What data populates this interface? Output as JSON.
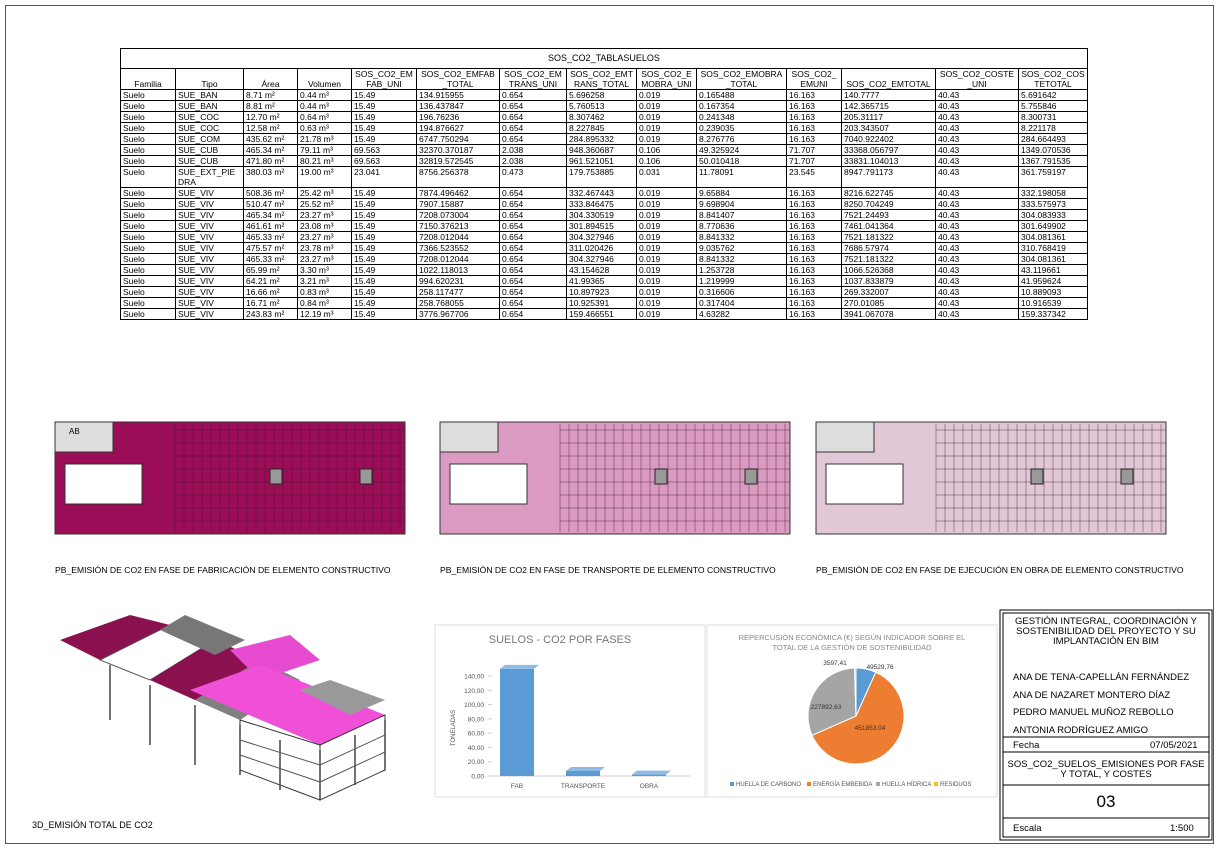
{
  "table": {
    "title": "SOS_CO2_TABLASUELOS",
    "headers": [
      "Familia",
      "Tipo",
      "Área",
      "Volumen",
      "SOS_CO2_EMFAB_UNI",
      "SOS_CO2_EMFAB_TOTAL",
      "SOS_CO2_EMTRANS_UNI",
      "SOS_CO2_EMTRANS_TOTAL",
      "SOS_CO2_EMOBRA_UNI",
      "SOS_CO2_EMOBRA_TOTAL",
      "SOS_CO2_EMUNI",
      "SOS_CO2_EMTOTAL",
      "SOS_CO2_COSTE_UNI",
      "SOS_CO2_COSTETOTAL"
    ],
    "rows": [
      [
        "Suelo",
        "SUE_BAN",
        "8.71 m²",
        "0.44 m³",
        "15.49",
        "134.915955",
        "0.654",
        "5.696258",
        "0.019",
        "0.165488",
        "16.163",
        "140.7777",
        "40.43",
        "5.691642"
      ],
      [
        "Suelo",
        "SUE_BAN",
        "8.81 m²",
        "0.44 m³",
        "15.49",
        "136.437847",
        "0.654",
        "5.760513",
        "0.019",
        "0.167354",
        "16.163",
        "142.365715",
        "40.43",
        "5.755846"
      ],
      [
        "Suelo",
        "SUE_COC",
        "12.70 m²",
        "0.64 m³",
        "15.49",
        "196.76236",
        "0.654",
        "8.307462",
        "0.019",
        "0.241348",
        "16.163",
        "205.31117",
        "40.43",
        "8.300731"
      ],
      [
        "Suelo",
        "SUE_COC",
        "12.58 m²",
        "0.63 m³",
        "15.49",
        "194.876627",
        "0.654",
        "8.227845",
        "0.019",
        "0.239035",
        "16.163",
        "203.343507",
        "40.43",
        "8.221178"
      ],
      [
        "Suelo",
        "SUE_COM",
        "435.62 m²",
        "21.78 m³",
        "15.49",
        "6747.750294",
        "0.654",
        "284.895332",
        "0.019",
        "8.276776",
        "16.163",
        "7040.922402",
        "40.43",
        "284.664493"
      ],
      [
        "Suelo",
        "SUE_CUB",
        "465.34 m²",
        "79.11 m³",
        "69.563",
        "32370.370187",
        "2.038",
        "948.360687",
        "0.106",
        "49.325924",
        "71.707",
        "33368.056797",
        "40.43",
        "1349.070536"
      ],
      [
        "Suelo",
        "SUE_CUB",
        "471.80 m²",
        "80.21 m³",
        "69.563",
        "32819.572545",
        "2.038",
        "961.521051",
        "0.106",
        "50.010418",
        "71.707",
        "33831.104013",
        "40.43",
        "1367.791535"
      ],
      [
        "Suelo",
        "SUE_EXT_PIEDRA",
        "380.03 m²",
        "19.00 m³",
        "23.041",
        "8756.256378",
        "0.473",
        "179.753885",
        "0.031",
        "11.78091",
        "23.545",
        "8947.791173",
        "40.43",
        "361.759197"
      ],
      [
        "Suelo",
        "SUE_VIV",
        "508.36 m²",
        "25.42 m³",
        "15.49",
        "7874.496462",
        "0.654",
        "332.467443",
        "0.019",
        "9.65884",
        "16.163",
        "8216.622745",
        "40.43",
        "332.198058"
      ],
      [
        "Suelo",
        "SUE_VIV",
        "510.47 m²",
        "25.52 m³",
        "15.49",
        "7907.15887",
        "0.654",
        "333.846475",
        "0.019",
        "9.698904",
        "16.163",
        "8250.704249",
        "40.43",
        "333.575973"
      ],
      [
        "Suelo",
        "SUE_VIV",
        "465.34 m²",
        "23.27 m³",
        "15.49",
        "7208.073004",
        "0.654",
        "304.330519",
        "0.019",
        "8.841407",
        "16.163",
        "7521.24493",
        "40.43",
        "304.083933"
      ],
      [
        "Suelo",
        "SUE_VIV",
        "461.61 m²",
        "23.08 m³",
        "15.49",
        "7150.376213",
        "0.654",
        "301.894515",
        "0.019",
        "8.770636",
        "16.163",
        "7461.041364",
        "40.43",
        "301.649902"
      ],
      [
        "Suelo",
        "SUE_VIV",
        "465.33 m²",
        "23.27 m³",
        "15.49",
        "7208.012044",
        "0.654",
        "304.327946",
        "0.019",
        "8.841332",
        "16.163",
        "7521.181322",
        "40.43",
        "304.081361"
      ],
      [
        "Suelo",
        "SUE_VIV",
        "475.57 m²",
        "23.78 m³",
        "15.49",
        "7366.523552",
        "0.654",
        "311.020426",
        "0.019",
        "9.035762",
        "16.163",
        "7686.57974",
        "40.43",
        "310.768419"
      ],
      [
        "Suelo",
        "SUE_VIV",
        "465.33 m²",
        "23.27 m³",
        "15.49",
        "7208.012044",
        "0.654",
        "304.327946",
        "0.019",
        "8.841332",
        "16.163",
        "7521.181322",
        "40.43",
        "304.081361"
      ],
      [
        "Suelo",
        "SUE_VIV",
        "65.99 m²",
        "3.30 m³",
        "15.49",
        "1022.118013",
        "0.654",
        "43.154628",
        "0.019",
        "1.253728",
        "16.163",
        "1066.526368",
        "40.43",
        "43.119661"
      ],
      [
        "Suelo",
        "SUE_VIV",
        "64.21 m²",
        "3.21 m³",
        "15.49",
        "994.620231",
        "0.654",
        "41.99365",
        "0.019",
        "1.219999",
        "16.163",
        "1037.833879",
        "40.43",
        "41.959624"
      ],
      [
        "Suelo",
        "SUE_VIV",
        "16.66 m²",
        "0.83 m³",
        "15.49",
        "258.117477",
        "0.654",
        "10.897923",
        "0.019",
        "0.316606",
        "16.163",
        "269.332007",
        "40.43",
        "10.889093"
      ],
      [
        "Suelo",
        "SUE_VIV",
        "16.71 m²",
        "0.84 m³",
        "15.49",
        "258.768055",
        "0.654",
        "10.925391",
        "0.019",
        "0.317404",
        "16.163",
        "270.01085",
        "40.43",
        "10.916539"
      ],
      [
        "Suelo",
        "SUE_VIV",
        "243.83 m²",
        "12.19 m³",
        "15.49",
        "3776.967706",
        "0.654",
        "159.466551",
        "0.019",
        "4.63282",
        "16.163",
        "3941.067078",
        "40.43",
        "159.337342"
      ]
    ]
  },
  "plans": [
    {
      "caption": "PB_EMISIÓN DE CO2 EN FASE DE FABRICACIÓN DE ELEMENTO CONSTRUCTIVO",
      "color": "#9b0d57",
      "tag": "AB"
    },
    {
      "caption": "PB_EMISIÓN DE CO2 EN FASE DE TRANSPORTE DE ELEMENTO CONSTRUCTIVO",
      "color": "#db9ac1"
    },
    {
      "caption": "PB_EMISIÓN DE CO2 EN FASE DE EJECUCIÓN EN OBRA DE ELEMENTO CONSTRUCTIVO",
      "color": "#e2c8d6"
    }
  ],
  "view3d": {
    "caption": "3D_EMISIÓN TOTAL DE CO2"
  },
  "chart_data": [
    {
      "type": "bar",
      "title": "SUELOS - CO2 POR FASES",
      "y_label": "TONELADAS",
      "categories": [
        "FAB",
        "TRANSPORTE",
        "OBRA"
      ],
      "values": [
        150,
        7,
        2
      ],
      "color": "#5b9bd5",
      "ylim": [
        0,
        160
      ],
      "yticks": [
        {
          "value": 0,
          "label": "0,00"
        },
        {
          "value": 20,
          "label": "20,00"
        },
        {
          "value": 40,
          "label": "40,00"
        },
        {
          "value": 60,
          "label": "60,00"
        },
        {
          "value": 80,
          "label": "80,00"
        },
        {
          "value": 100,
          "label": "100,00"
        },
        {
          "value": 120,
          "label": "120,00"
        },
        {
          "value": 140,
          "label": "140,00"
        }
      ],
      "grid": false
    },
    {
      "type": "pie",
      "title": "REPERCUSIÓN ECONÓMICA (€) SEGÚN INDICADOR SOBRE EL TOTAL DE LA GESTIÓN DE SOSTENIBILIDAD",
      "series": [
        {
          "name": "HUELLA DE CARBONO",
          "color": "#5b9bd5"
        },
        {
          "name": "ENERGÍA EMBEBIDA",
          "color": "#ed7d31"
        },
        {
          "name": "HUELLA HÍDRICA",
          "color": "#a5a5a5"
        },
        {
          "name": "RESIDUOS",
          "color": "#ffc000"
        }
      ],
      "values": [
        49529.76,
        451853.04,
        227892.63,
        3597.41
      ],
      "value_labels": [
        "49529,76",
        "451853,04",
        "227892,63",
        "3597,41"
      ]
    }
  ],
  "title_block": {
    "project": "GESTIÓN INTEGRAL, COORDINACIÓN Y SOSTENIBILIDAD DEL PROYECTO Y SU IMPLANTACIÓN EN BIM",
    "authors": [
      "ANA DE TENA-CAPELLÁN FERNÁNDEZ",
      "ANA DE NAZARET MONTERO DÍAZ",
      "PEDRO MANUEL MUÑOZ REBOLLO",
      "ANTONIA RODRÍGUEZ AMIGO"
    ],
    "date_label": "Fecha",
    "date": "07/05/2021",
    "sheet_title": "SOS_CO2_SUELOS_EMISIONES POR FASE Y TOTAL, Y COSTES",
    "sheet_number": "03",
    "scale_label": "Escala",
    "scale": "1:500"
  }
}
